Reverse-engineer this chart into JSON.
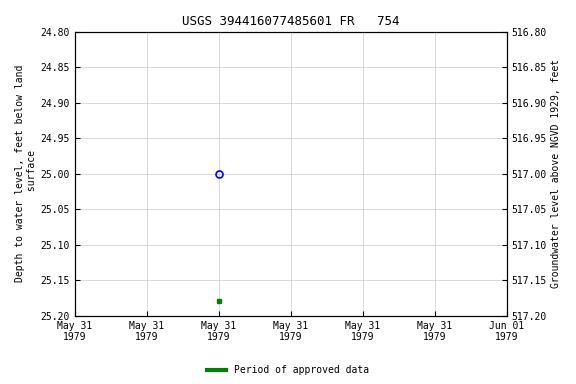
{
  "title": "USGS 394416077485601 FR   754",
  "ylabel_left": "Depth to water level, feet below land\n surface",
  "ylabel_right": "Groundwater level above NGVD 1929, feet",
  "ylim_left": [
    24.8,
    25.2
  ],
  "ylim_right": [
    517.2,
    516.8
  ],
  "yticks_left": [
    24.8,
    24.85,
    24.9,
    24.95,
    25.0,
    25.05,
    25.1,
    25.15,
    25.2
  ],
  "yticks_right": [
    517.2,
    517.15,
    517.1,
    517.05,
    517.0,
    516.95,
    516.9,
    516.85,
    516.8
  ],
  "data_approved_x": [
    "1979-05-31T12:00:00"
  ],
  "data_approved_y": [
    25.18
  ],
  "data_provisional_x": [
    "1979-05-31T12:00:00"
  ],
  "data_provisional_y": [
    25.0
  ],
  "xstart_days": 0.0,
  "xend_days": 1.5,
  "xtick_offsets_days": [
    0.0,
    0.25,
    0.5,
    0.75,
    1.0,
    1.25,
    1.5
  ],
  "xtick_labels": [
    "May 31\n1979",
    "May 31\n1979",
    "May 31\n1979",
    "May 31\n1979",
    "May 31\n1979",
    "May 31\n1979",
    "Jun 01\n1979"
  ],
  "approved_color": "#008000",
  "provisional_color": "#0000ff",
  "background_color": "#ffffff",
  "grid_color": "#cccccc",
  "legend_label": "Period of approved data",
  "legend_color": "#008000"
}
